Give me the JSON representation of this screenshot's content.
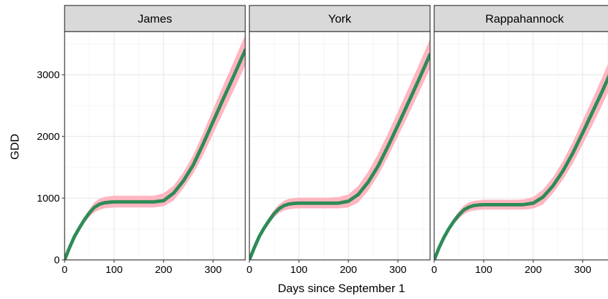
{
  "chart_data": {
    "type": "area",
    "xlabel": "Days since September 1",
    "ylabel": "GDD",
    "xlim": [
      0,
      365
    ],
    "ylim": [
      0,
      3700
    ],
    "x_ticks": [
      0,
      100,
      200,
      300
    ],
    "y_ticks": [
      0,
      1000,
      2000,
      3000
    ],
    "grid": true,
    "line_color": "#2e8b57",
    "band_color": "#ffb6c1",
    "strip_color": "#d9d9d9",
    "panels": [
      {
        "name": "James",
        "series": {
          "x": [
            0,
            10,
            20,
            30,
            40,
            50,
            60,
            70,
            80,
            90,
            100,
            120,
            140,
            160,
            180,
            200,
            220,
            240,
            260,
            280,
            300,
            320,
            340,
            365
          ],
          "y": [
            0,
            200,
            380,
            520,
            650,
            760,
            850,
            900,
            925,
            935,
            940,
            940,
            940,
            940,
            940,
            960,
            1080,
            1280,
            1540,
            1880,
            2240,
            2600,
            2950,
            3400
          ],
          "lower": [
            0,
            180,
            350,
            480,
            600,
            700,
            770,
            810,
            835,
            845,
            850,
            850,
            850,
            850,
            850,
            870,
            960,
            1160,
            1400,
            1700,
            2040,
            2380,
            2720,
            3150
          ],
          "upper": [
            0,
            220,
            410,
            560,
            700,
            820,
            930,
            990,
            1020,
            1030,
            1040,
            1040,
            1040,
            1040,
            1040,
            1080,
            1200,
            1420,
            1700,
            2060,
            2440,
            2820,
            3180,
            3650
          ]
        }
      },
      {
        "name": "York",
        "series": {
          "x": [
            0,
            10,
            20,
            30,
            40,
            50,
            60,
            70,
            80,
            90,
            100,
            120,
            140,
            160,
            180,
            200,
            220,
            240,
            260,
            280,
            300,
            320,
            340,
            365
          ],
          "y": [
            0,
            200,
            380,
            520,
            640,
            750,
            830,
            880,
            905,
            915,
            920,
            920,
            920,
            920,
            920,
            950,
            1060,
            1260,
            1520,
            1840,
            2180,
            2530,
            2880,
            3330
          ],
          "lower": [
            0,
            180,
            350,
            480,
            590,
            690,
            760,
            800,
            820,
            830,
            835,
            835,
            835,
            835,
            835,
            850,
            930,
            1120,
            1370,
            1670,
            2000,
            2330,
            2670,
            3100
          ],
          "upper": [
            0,
            220,
            410,
            560,
            690,
            810,
            900,
            960,
            990,
            1000,
            1010,
            1010,
            1010,
            1010,
            1020,
            1060,
            1200,
            1430,
            1720,
            2050,
            2400,
            2760,
            3120,
            3580
          ]
        }
      },
      {
        "name": "Rappahannock",
        "series": {
          "x": [
            0,
            10,
            20,
            30,
            40,
            50,
            60,
            70,
            80,
            90,
            100,
            120,
            140,
            160,
            180,
            200,
            220,
            240,
            260,
            280,
            300,
            320,
            340,
            365
          ],
          "y": [
            0,
            200,
            370,
            510,
            630,
            730,
            810,
            855,
            880,
            890,
            895,
            895,
            895,
            895,
            895,
            920,
            1020,
            1200,
            1440,
            1730,
            2060,
            2400,
            2740,
            3190
          ],
          "lower": [
            0,
            180,
            340,
            470,
            580,
            670,
            740,
            780,
            800,
            810,
            815,
            815,
            815,
            815,
            815,
            830,
            900,
            1080,
            1300,
            1560,
            1870,
            2190,
            2520,
            2950
          ],
          "upper": [
            0,
            220,
            400,
            550,
            680,
            790,
            880,
            930,
            955,
            965,
            975,
            975,
            975,
            975,
            980,
            1020,
            1140,
            1340,
            1600,
            1910,
            2260,
            2610,
            2970,
            3430
          ]
        }
      }
    ]
  }
}
